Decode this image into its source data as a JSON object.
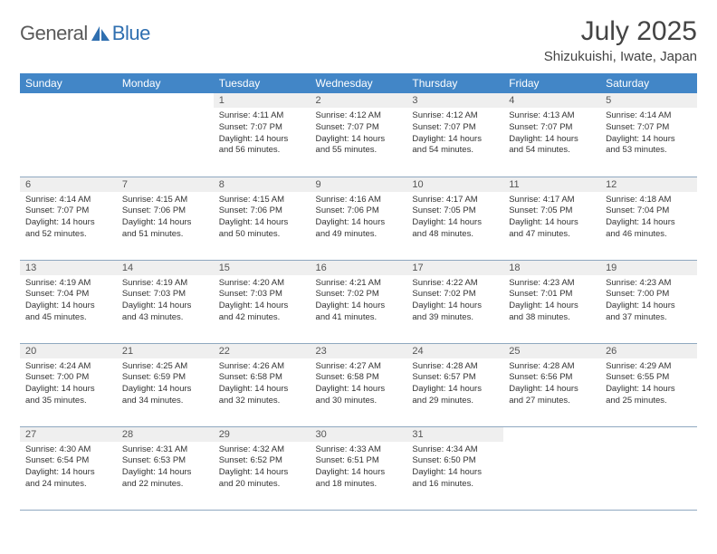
{
  "logo": {
    "text1": "General",
    "text2": "Blue"
  },
  "title": "July 2025",
  "location": "Shizukuishi, Iwate, Japan",
  "colors": {
    "header_bg": "#4286c7",
    "header_text": "#ffffff",
    "daynum_bg": "#efefef",
    "border": "#8fa8c0",
    "logo_gray": "#5a5a5a",
    "logo_blue": "#2f6fb0"
  },
  "weekdays": [
    "Sunday",
    "Monday",
    "Tuesday",
    "Wednesday",
    "Thursday",
    "Friday",
    "Saturday"
  ],
  "weeks": [
    [
      null,
      null,
      {
        "n": "1",
        "sr": "4:11 AM",
        "ss": "7:07 PM",
        "dl": "14 hours and 56 minutes."
      },
      {
        "n": "2",
        "sr": "4:12 AM",
        "ss": "7:07 PM",
        "dl": "14 hours and 55 minutes."
      },
      {
        "n": "3",
        "sr": "4:12 AM",
        "ss": "7:07 PM",
        "dl": "14 hours and 54 minutes."
      },
      {
        "n": "4",
        "sr": "4:13 AM",
        "ss": "7:07 PM",
        "dl": "14 hours and 54 minutes."
      },
      {
        "n": "5",
        "sr": "4:14 AM",
        "ss": "7:07 PM",
        "dl": "14 hours and 53 minutes."
      }
    ],
    [
      {
        "n": "6",
        "sr": "4:14 AM",
        "ss": "7:07 PM",
        "dl": "14 hours and 52 minutes."
      },
      {
        "n": "7",
        "sr": "4:15 AM",
        "ss": "7:06 PM",
        "dl": "14 hours and 51 minutes."
      },
      {
        "n": "8",
        "sr": "4:15 AM",
        "ss": "7:06 PM",
        "dl": "14 hours and 50 minutes."
      },
      {
        "n": "9",
        "sr": "4:16 AM",
        "ss": "7:06 PM",
        "dl": "14 hours and 49 minutes."
      },
      {
        "n": "10",
        "sr": "4:17 AM",
        "ss": "7:05 PM",
        "dl": "14 hours and 48 minutes."
      },
      {
        "n": "11",
        "sr": "4:17 AM",
        "ss": "7:05 PM",
        "dl": "14 hours and 47 minutes."
      },
      {
        "n": "12",
        "sr": "4:18 AM",
        "ss": "7:04 PM",
        "dl": "14 hours and 46 minutes."
      }
    ],
    [
      {
        "n": "13",
        "sr": "4:19 AM",
        "ss": "7:04 PM",
        "dl": "14 hours and 45 minutes."
      },
      {
        "n": "14",
        "sr": "4:19 AM",
        "ss": "7:03 PM",
        "dl": "14 hours and 43 minutes."
      },
      {
        "n": "15",
        "sr": "4:20 AM",
        "ss": "7:03 PM",
        "dl": "14 hours and 42 minutes."
      },
      {
        "n": "16",
        "sr": "4:21 AM",
        "ss": "7:02 PM",
        "dl": "14 hours and 41 minutes."
      },
      {
        "n": "17",
        "sr": "4:22 AM",
        "ss": "7:02 PM",
        "dl": "14 hours and 39 minutes."
      },
      {
        "n": "18",
        "sr": "4:23 AM",
        "ss": "7:01 PM",
        "dl": "14 hours and 38 minutes."
      },
      {
        "n": "19",
        "sr": "4:23 AM",
        "ss": "7:00 PM",
        "dl": "14 hours and 37 minutes."
      }
    ],
    [
      {
        "n": "20",
        "sr": "4:24 AM",
        "ss": "7:00 PM",
        "dl": "14 hours and 35 minutes."
      },
      {
        "n": "21",
        "sr": "4:25 AM",
        "ss": "6:59 PM",
        "dl": "14 hours and 34 minutes."
      },
      {
        "n": "22",
        "sr": "4:26 AM",
        "ss": "6:58 PM",
        "dl": "14 hours and 32 minutes."
      },
      {
        "n": "23",
        "sr": "4:27 AM",
        "ss": "6:58 PM",
        "dl": "14 hours and 30 minutes."
      },
      {
        "n": "24",
        "sr": "4:28 AM",
        "ss": "6:57 PM",
        "dl": "14 hours and 29 minutes."
      },
      {
        "n": "25",
        "sr": "4:28 AM",
        "ss": "6:56 PM",
        "dl": "14 hours and 27 minutes."
      },
      {
        "n": "26",
        "sr": "4:29 AM",
        "ss": "6:55 PM",
        "dl": "14 hours and 25 minutes."
      }
    ],
    [
      {
        "n": "27",
        "sr": "4:30 AM",
        "ss": "6:54 PM",
        "dl": "14 hours and 24 minutes."
      },
      {
        "n": "28",
        "sr": "4:31 AM",
        "ss": "6:53 PM",
        "dl": "14 hours and 22 minutes."
      },
      {
        "n": "29",
        "sr": "4:32 AM",
        "ss": "6:52 PM",
        "dl": "14 hours and 20 minutes."
      },
      {
        "n": "30",
        "sr": "4:33 AM",
        "ss": "6:51 PM",
        "dl": "14 hours and 18 minutes."
      },
      {
        "n": "31",
        "sr": "4:34 AM",
        "ss": "6:50 PM",
        "dl": "14 hours and 16 minutes."
      },
      null,
      null
    ]
  ],
  "labels": {
    "sunrise": "Sunrise:",
    "sunset": "Sunset:",
    "daylight": "Daylight:"
  }
}
